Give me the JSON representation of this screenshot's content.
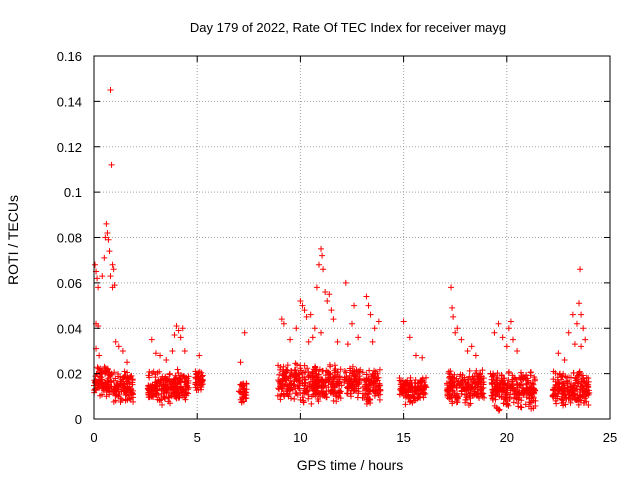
{
  "chart_data": {
    "type": "scatter",
    "title": "Day 179 of 2022, Rate Of TEC Index for receiver mayg",
    "xlabel": "GPS time / hours",
    "ylabel": "ROTI / TECUs",
    "xlim": [
      0,
      25
    ],
    "ylim": [
      0,
      0.16
    ],
    "grid": true,
    "x_ticks": [
      0,
      5,
      10,
      15,
      20,
      25
    ],
    "x_tick_labels": [
      "0",
      "5",
      "10",
      "15",
      "20",
      "25"
    ],
    "y_ticks": [
      0,
      0.02,
      0.04,
      0.06,
      0.08,
      0.1,
      0.12,
      0.14,
      0.16
    ],
    "y_tick_labels": [
      "0",
      "0.02",
      "0.04",
      "0.06",
      "0.08",
      "0.1",
      "0.12",
      "0.14",
      "0.16"
    ],
    "marker": "+",
    "marker_color": "#ff0000",
    "series": [
      {
        "name": "ROTI",
        "clusters": [
          {
            "x_range": [
              0.0,
              0.9
            ],
            "y_range": [
              0.008,
              0.025
            ]
          },
          {
            "x_range": [
              0.9,
              1.9
            ],
            "y_range": [
              0.006,
              0.022
            ]
          },
          {
            "x_range": [
              2.6,
              4.6
            ],
            "y_range": [
              0.006,
              0.022
            ]
          },
          {
            "x_range": [
              4.9,
              5.3
            ],
            "y_range": [
              0.012,
              0.022
            ]
          },
          {
            "x_range": [
              7.0,
              7.4
            ],
            "y_range": [
              0.006,
              0.018
            ]
          },
          {
            "x_range": [
              8.9,
              12.0
            ],
            "y_range": [
              0.006,
              0.025
            ]
          },
          {
            "x_range": [
              12.1,
              12.9
            ],
            "y_range": [
              0.008,
              0.024
            ]
          },
          {
            "x_range": [
              13.0,
              13.9
            ],
            "y_range": [
              0.006,
              0.022
            ]
          },
          {
            "x_range": [
              14.8,
              16.1
            ],
            "y_range": [
              0.006,
              0.02
            ]
          },
          {
            "x_range": [
              17.1,
              18.9
            ],
            "y_range": [
              0.006,
              0.022
            ]
          },
          {
            "x_range": [
              19.2,
              21.4
            ],
            "y_range": [
              0.003,
              0.022
            ]
          },
          {
            "x_range": [
              22.2,
              24.0
            ],
            "y_range": [
              0.005,
              0.022
            ]
          }
        ],
        "points": [
          [
            0.05,
            0.068
          ],
          [
            0.1,
            0.065
          ],
          [
            0.15,
            0.062
          ],
          [
            0.2,
            0.058
          ],
          [
            0.1,
            0.042
          ],
          [
            0.2,
            0.041
          ],
          [
            0.1,
            0.031
          ],
          [
            0.25,
            0.028
          ],
          [
            0.4,
            0.063
          ],
          [
            0.5,
            0.071
          ],
          [
            0.55,
            0.08
          ],
          [
            0.6,
            0.086
          ],
          [
            0.65,
            0.082
          ],
          [
            0.7,
            0.079
          ],
          [
            0.75,
            0.074
          ],
          [
            0.8,
            0.063
          ],
          [
            0.85,
            0.112
          ],
          [
            0.8,
            0.145
          ],
          [
            0.9,
            0.068
          ],
          [
            0.95,
            0.066
          ],
          [
            1.0,
            0.059
          ],
          [
            0.9,
            0.058
          ],
          [
            1.05,
            0.034
          ],
          [
            1.2,
            0.032
          ],
          [
            1.4,
            0.03
          ],
          [
            1.6,
            0.025
          ],
          [
            2.8,
            0.035
          ],
          [
            3.0,
            0.029
          ],
          [
            3.2,
            0.028
          ],
          [
            3.5,
            0.026
          ],
          [
            3.8,
            0.03
          ],
          [
            3.9,
            0.037
          ],
          [
            4.0,
            0.041
          ],
          [
            4.1,
            0.039
          ],
          [
            4.2,
            0.036
          ],
          [
            4.3,
            0.04
          ],
          [
            4.4,
            0.03
          ],
          [
            5.1,
            0.028
          ],
          [
            7.3,
            0.038
          ],
          [
            7.1,
            0.025
          ],
          [
            9.1,
            0.044
          ],
          [
            9.2,
            0.042
          ],
          [
            9.5,
            0.035
          ],
          [
            9.8,
            0.04
          ],
          [
            10.0,
            0.052
          ],
          [
            10.1,
            0.05
          ],
          [
            10.2,
            0.048
          ],
          [
            10.3,
            0.045
          ],
          [
            10.5,
            0.046
          ],
          [
            10.7,
            0.04
          ],
          [
            10.8,
            0.058
          ],
          [
            10.9,
            0.068
          ],
          [
            11.0,
            0.075
          ],
          [
            11.05,
            0.072
          ],
          [
            11.1,
            0.066
          ],
          [
            11.2,
            0.056
          ],
          [
            11.3,
            0.052
          ],
          [
            11.4,
            0.055
          ],
          [
            11.5,
            0.048
          ],
          [
            11.6,
            0.044
          ],
          [
            11.0,
            0.038
          ],
          [
            10.6,
            0.036
          ],
          [
            10.4,
            0.034
          ],
          [
            11.8,
            0.034
          ],
          [
            12.2,
            0.06
          ],
          [
            12.3,
            0.033
          ],
          [
            12.5,
            0.042
          ],
          [
            12.6,
            0.05
          ],
          [
            12.8,
            0.036
          ],
          [
            13.2,
            0.054
          ],
          [
            13.3,
            0.05
          ],
          [
            13.4,
            0.046
          ],
          [
            13.6,
            0.04
          ],
          [
            13.8,
            0.043
          ],
          [
            13.5,
            0.034
          ],
          [
            15.0,
            0.043
          ],
          [
            15.3,
            0.036
          ],
          [
            15.6,
            0.028
          ],
          [
            15.9,
            0.027
          ],
          [
            17.3,
            0.058
          ],
          [
            17.35,
            0.049
          ],
          [
            17.4,
            0.045
          ],
          [
            17.5,
            0.038
          ],
          [
            17.6,
            0.04
          ],
          [
            17.8,
            0.035
          ],
          [
            18.1,
            0.03
          ],
          [
            18.3,
            0.032
          ],
          [
            18.5,
            0.028
          ],
          [
            19.4,
            0.038
          ],
          [
            19.6,
            0.042
          ],
          [
            19.8,
            0.036
          ],
          [
            20.0,
            0.032
          ],
          [
            20.1,
            0.04
          ],
          [
            20.2,
            0.043
          ],
          [
            20.3,
            0.035
          ],
          [
            20.5,
            0.03
          ],
          [
            22.5,
            0.029
          ],
          [
            22.8,
            0.026
          ],
          [
            23.0,
            0.038
          ],
          [
            23.2,
            0.046
          ],
          [
            23.3,
            0.033
          ],
          [
            23.4,
            0.042
          ],
          [
            23.5,
            0.051
          ],
          [
            23.55,
            0.066
          ],
          [
            23.6,
            0.046
          ],
          [
            23.7,
            0.04
          ],
          [
            23.8,
            0.035
          ],
          [
            23.6,
            0.032
          ]
        ]
      }
    ]
  }
}
